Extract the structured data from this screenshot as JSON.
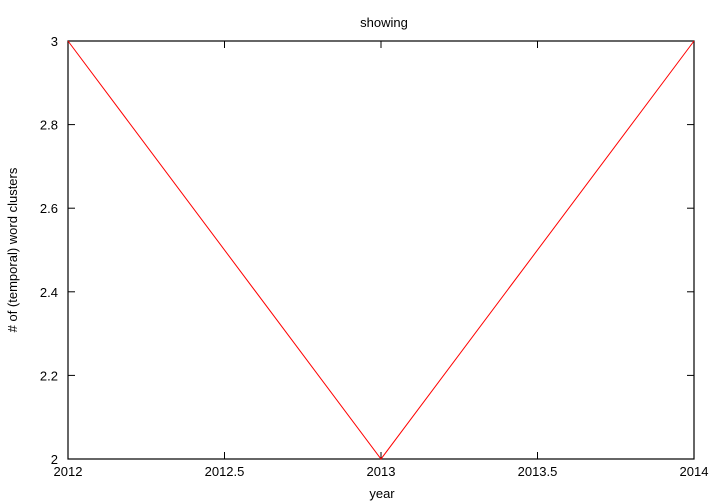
{
  "chart_data": {
    "type": "line",
    "title": "showing",
    "xlabel": "year",
    "ylabel": "# of (temporal) word clusters",
    "xlim": [
      2012,
      2014
    ],
    "ylim": [
      2,
      3
    ],
    "xticks": [
      "2012",
      "2012.5",
      "2013",
      "2013.5",
      "2014"
    ],
    "yticks": [
      "2",
      "2.2",
      "2.4",
      "2.6",
      "2.8",
      "3"
    ],
    "grid": false,
    "series": [
      {
        "x": [
          2012,
          2013,
          2014
        ],
        "y": [
          3,
          2,
          3
        ],
        "color": "#ff0000"
      }
    ]
  }
}
